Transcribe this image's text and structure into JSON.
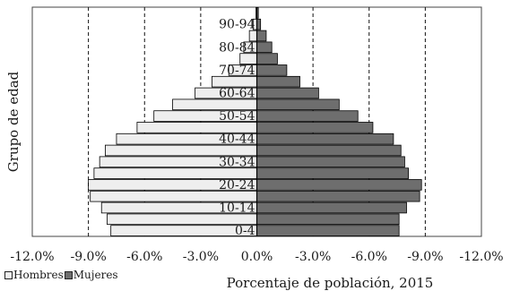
{
  "chart_data": {
    "type": "bar",
    "orientation": "horizontal",
    "layout": "population-pyramid",
    "xlabel": "Porcentaje de población, 2015",
    "ylabel": "Grupo de edad",
    "xlim": [
      -12.0,
      12.0
    ],
    "x_ticks": [
      -12.0,
      -9.0,
      -6.0,
      -3.0,
      0.0,
      3.0,
      6.0,
      9.0,
      12.0
    ],
    "x_tick_labels": [
      "-12.0%",
      "-9.0%",
      "-6.0%",
      "-3.0%",
      "0.0%",
      "-3.0%",
      "-6.0%",
      "-9.0%",
      "-12.0%"
    ],
    "gridlines": "dashed vertical at each tick",
    "legend_placement": "bottom-left",
    "categories": [
      "0-4",
      "5-9",
      "10-14",
      "15-19",
      "20-24",
      "25-29",
      "30-34",
      "35-39",
      "40-44",
      "45-49",
      "50-54",
      "55-59",
      "60-64",
      "65-69",
      "70-74",
      "75-79",
      "80-84",
      "85-89",
      "90-94",
      "95+"
    ],
    "category_labels_shown": [
      "0-4",
      "10-14",
      "20-24",
      "30-34",
      "40-44",
      "50-54",
      "60-64",
      "70-74",
      "80-84",
      "90-94"
    ],
    "series": [
      {
        "name": "Hombres",
        "side": "left",
        "color": "#eeeeee",
        "values": [
          7.8,
          8.0,
          8.3,
          8.9,
          9.0,
          8.7,
          8.4,
          8.1,
          7.5,
          6.4,
          5.5,
          4.5,
          3.3,
          2.4,
          1.5,
          0.9,
          0.7,
          0.4,
          0.2,
          0.05
        ]
      },
      {
        "name": "Mujeres",
        "side": "right",
        "color": "#6e6e6e",
        "values": [
          7.6,
          7.6,
          8.0,
          8.7,
          8.8,
          8.1,
          7.9,
          7.7,
          7.3,
          6.2,
          5.4,
          4.4,
          3.3,
          2.3,
          1.6,
          1.1,
          0.8,
          0.5,
          0.2,
          0.08
        ]
      }
    ]
  }
}
